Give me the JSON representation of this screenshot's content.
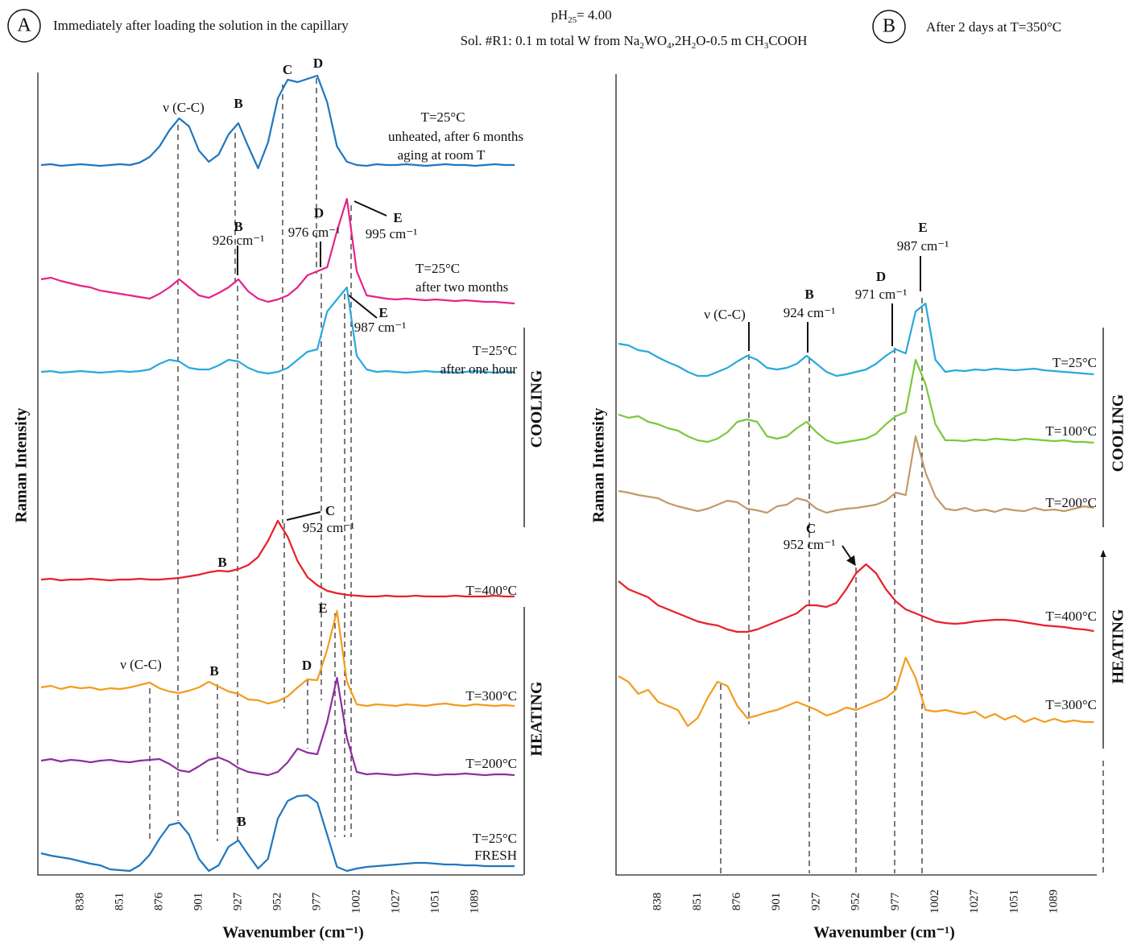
{
  "panel_labels": [
    "A",
    "B"
  ],
  "header": {
    "subtitle_a": "Immediately after loading the solution in the capillary",
    "subtitle_b": "After 2 days at T=350°C",
    "ph": [
      "pH",
      "25",
      "= 4.00"
    ],
    "solution": [
      "Sol. #R1: 0.1 m total W from ",
      "Na",
      "2",
      "WO",
      "4",
      ",2H",
      "2",
      "O-0.5 m CH",
      "3",
      "COOH"
    ]
  },
  "chart_data": [
    {
      "type": "line",
      "xlabel": "Wavenumber (cm⁻¹)",
      "ylabel": "Raman Intensity",
      "ylim": [
        0,
        100
      ],
      "categories": [
        null,
        null,
        null,
        null,
        "838",
        null,
        null,
        null,
        "851",
        null,
        null,
        null,
        "876",
        null,
        null,
        null,
        "901",
        null,
        null,
        null,
        "927",
        null,
        null,
        null,
        "952",
        null,
        null,
        null,
        "977",
        null,
        null,
        null,
        "1002",
        null,
        null,
        null,
        "1027",
        null,
        null,
        null,
        "1051",
        null,
        null,
        null,
        "1089",
        null,
        null,
        null,
        null
      ],
      "side_labels": [
        "COOLING",
        "HEATING"
      ],
      "annotations": [
        "ν (C-C)",
        "B",
        "C",
        "D",
        "B",
        "926 cm⁻¹",
        "D",
        "976 cm⁻¹",
        "E",
        "995 cm⁻¹",
        "E",
        "987 cm⁻¹",
        "C",
        "952 cm⁻¹",
        "B",
        "E",
        "ν (C-C)",
        "B",
        "D",
        "B"
      ],
      "series": [
        {
          "name": "T=25°C",
          "description": [
            "unheated, after 6 months",
            "aging at room T"
          ],
          "color": "#1f77c0",
          "values": [
            88.2,
            88.3,
            88.1,
            88.2,
            88.3,
            88.2,
            88.1,
            88.2,
            88.3,
            88.2,
            88.5,
            89.2,
            90.5,
            92.5,
            94,
            93,
            90,
            88.6,
            89.5,
            92,
            93.4,
            90.5,
            87.8,
            91,
            96.5,
            98.8,
            98.5,
            98.9,
            99.3,
            96,
            90.5,
            88.6,
            88.2,
            88.1,
            88.3,
            88.2,
            88.2,
            88.3,
            88.2,
            88.1,
            88.2,
            88.3,
            88.2,
            88.2,
            88.1,
            88.2,
            88.3,
            88.2,
            88.2
          ]
        },
        {
          "name": "T=25°C",
          "description": [
            "after two months"
          ],
          "color": "#e6228a",
          "values": [
            74,
            74.2,
            73.8,
            73.5,
            73.2,
            73,
            72.6,
            72.4,
            72.2,
            72,
            71.8,
            71.6,
            72.2,
            73,
            74,
            73,
            72,
            71.7,
            72.3,
            73,
            74,
            72.5,
            71.6,
            71.2,
            71.5,
            72,
            73,
            74.5,
            75,
            75.5,
            80,
            84,
            75,
            72,
            71.8,
            71.6,
            71.5,
            71.6,
            71.5,
            71.4,
            71.5,
            71.4,
            71.3,
            71.4,
            71.3,
            71.2,
            71.2,
            71.1,
            71
          ]
        },
        {
          "name": "T=25°C",
          "description": [
            "after one hour"
          ],
          "color": "#2aa8dc",
          "values": [
            62.5,
            62.6,
            62.4,
            62.5,
            62.6,
            62.5,
            62.4,
            62.5,
            62.6,
            62.5,
            62.6,
            62.8,
            63.5,
            64,
            63.8,
            63,
            62.8,
            62.8,
            63.3,
            64,
            63.8,
            63,
            62.5,
            62.3,
            62.5,
            63,
            64,
            65,
            65.3,
            70,
            71.5,
            73,
            64.5,
            62.8,
            62.5,
            62.6,
            62.5,
            62.4,
            62.5,
            62.6,
            62.5,
            62.5,
            62.4,
            62.5,
            62.6,
            62.5,
            62.4,
            62.5,
            62.5
          ]
        },
        {
          "name": "T=400°C",
          "color": "#e8202a",
          "values": [
            36.7,
            36.8,
            36.6,
            36.7,
            36.7,
            36.8,
            36.7,
            36.6,
            36.7,
            36.7,
            36.8,
            36.7,
            36.7,
            36.8,
            36.9,
            37.1,
            37.3,
            37.6,
            37.8,
            37.7,
            38,
            38.5,
            39.5,
            41.5,
            44,
            42,
            39,
            37,
            36,
            35.3,
            35,
            34.8,
            34.7,
            34.6,
            34.6,
            34.7,
            34.6,
            34.6,
            34.7,
            34.6,
            34.6,
            34.6,
            34.7,
            34.6,
            34.6,
            34.6,
            34.7,
            34.6,
            34.6
          ]
        },
        {
          "name": "T=300°C",
          "color": "#f39c1e",
          "values": [
            23.3,
            23.5,
            23.1,
            23.4,
            23.2,
            23.3,
            23,
            23.2,
            23.1,
            23.3,
            23.6,
            23.9,
            23.2,
            22.8,
            22.6,
            22.9,
            23.3,
            24,
            23.4,
            22.8,
            22.5,
            21.8,
            21.7,
            21.3,
            21.6,
            22.2,
            23.3,
            24.3,
            24.2,
            28,
            32.8,
            24,
            21.2,
            21,
            21.2,
            21.1,
            21,
            21.2,
            21.1,
            21,
            21.2,
            21.3,
            21.1,
            21,
            21.2,
            21.1,
            21,
            21.1,
            21
          ]
        },
        {
          "name": "T=200°C",
          "color": "#8e2fa0",
          "values": [
            14.2,
            14.4,
            14.1,
            14.3,
            14.2,
            14,
            14.2,
            14.3,
            14.1,
            14,
            14.2,
            14.3,
            14.4,
            13.8,
            13,
            12.8,
            13.5,
            14.3,
            14.6,
            14.1,
            13.3,
            12.8,
            12.6,
            12.4,
            12.8,
            14,
            15.7,
            15.2,
            15,
            19,
            24.5,
            17,
            12.8,
            12.5,
            12.6,
            12.5,
            12.4,
            12.5,
            12.6,
            12.5,
            12.4,
            12.5,
            12.5,
            12.6,
            12.5,
            12.4,
            12.5,
            12.5,
            12.4
          ]
        },
        {
          "name": "T=25°C",
          "description": [
            "FRESH"
          ],
          "color": "#1f77c0",
          "values": [
            2.7,
            2.4,
            2.2,
            2,
            1.7,
            1.4,
            1.2,
            0.7,
            0.6,
            0.5,
            1.2,
            2.5,
            4.5,
            6.2,
            6.5,
            5,
            2,
            0.5,
            1.2,
            3.5,
            4.3,
            2.5,
            0.8,
            2,
            7,
            9.2,
            9.8,
            9.9,
            9,
            5,
            1,
            0.5,
            0.8,
            1,
            1.1,
            1.2,
            1.3,
            1.4,
            1.5,
            1.5,
            1.4,
            1.3,
            1.3,
            1.2,
            1.2,
            1.1,
            1.1,
            1.1,
            1.1
          ]
        }
      ]
    },
    {
      "type": "line",
      "xlabel": "Wavenumber (cm⁻¹)",
      "ylabel": "Raman Intensity",
      "ylim": [
        0,
        100
      ],
      "categories": [
        null,
        null,
        null,
        null,
        "838",
        null,
        null,
        null,
        "851",
        null,
        null,
        null,
        "876",
        null,
        null,
        null,
        "901",
        null,
        null,
        null,
        "927",
        null,
        null,
        null,
        "952",
        null,
        null,
        null,
        "977",
        null,
        null,
        null,
        "1002",
        null,
        null,
        null,
        "1027",
        null,
        null,
        null,
        "1051",
        null,
        null,
        null,
        "1089",
        null,
        null,
        null,
        null
      ],
      "side_labels": [
        "COOLING",
        "HEATING"
      ],
      "annotations": [
        "ν (C-C)",
        "B",
        "924 cm⁻¹",
        "D",
        "971 cm⁻¹",
        "E",
        "987 cm⁻¹",
        "C",
        "952 cm⁻¹"
      ],
      "series": [
        {
          "name": "T=25°C",
          "color": "#2aa8dc",
          "values": [
            66,
            65.8,
            65.2,
            65,
            64.3,
            63.7,
            63.2,
            62.5,
            62,
            62,
            62.5,
            63,
            63.8,
            64.5,
            64,
            63,
            62.8,
            63,
            63.5,
            64.5,
            63.5,
            62.5,
            62,
            62.2,
            62.5,
            62.8,
            63.5,
            64.5,
            65.3,
            64.8,
            70,
            71,
            64,
            62.5,
            62.7,
            62.6,
            62.8,
            62.7,
            62.9,
            62.8,
            62.7,
            62.8,
            62.9,
            62.7,
            62.6,
            62.5,
            62.4,
            62.3,
            62.2
          ]
        },
        {
          "name": "T=100°C",
          "color": "#7cc83c",
          "values": [
            57.2,
            56.8,
            57,
            56.3,
            56,
            55.5,
            55.2,
            54.5,
            54,
            53.8,
            54.2,
            55,
            56.3,
            56.6,
            56.3,
            54.5,
            54.2,
            54.5,
            55.5,
            56.3,
            55,
            54,
            53.6,
            53.8,
            54,
            54.2,
            54.8,
            56,
            57,
            57.5,
            64,
            61,
            56,
            54,
            54,
            53.9,
            54.1,
            54,
            54.2,
            54.1,
            54,
            54.2,
            54.1,
            54,
            53.9,
            54,
            53.8,
            53.8,
            53.7
          ]
        },
        {
          "name": "T=200°C",
          "color": "#c19a6b",
          "values": [
            47.7,
            47.5,
            47.2,
            47,
            46.8,
            46.2,
            45.8,
            45.5,
            45.2,
            45.5,
            46,
            46.5,
            46.3,
            45.5,
            45.3,
            45,
            45.8,
            46,
            46.8,
            46.5,
            45.5,
            45,
            45.3,
            45.5,
            45.6,
            45.8,
            46,
            46.5,
            47.5,
            47.2,
            54.5,
            50,
            47,
            45.5,
            45.3,
            45.6,
            45.2,
            45.4,
            45.1,
            45.5,
            45.3,
            45.2,
            45.6,
            45.3,
            45.4,
            45.2,
            45.5,
            45.8,
            45.6
          ]
        },
        {
          "name": "T=400°C",
          "color": "#e8202a",
          "values": [
            36.5,
            35.5,
            35,
            34.5,
            33.5,
            33,
            32.5,
            32,
            31.5,
            31.2,
            31,
            30.5,
            30.2,
            30.2,
            30.5,
            31,
            31.5,
            32,
            32.5,
            33.5,
            33.5,
            33.3,
            33.8,
            35.5,
            37.5,
            38.6,
            37.5,
            35.5,
            34,
            33,
            32.5,
            32,
            31.5,
            31.3,
            31.2,
            31.3,
            31.5,
            31.6,
            31.7,
            31.7,
            31.6,
            31.4,
            31.2,
            31,
            30.9,
            30.8,
            30.6,
            30.5,
            30.3
          ]
        },
        {
          "name": "T=300°C",
          "color": "#f39c1e",
          "values": [
            24.7,
            24,
            22.5,
            23,
            21.5,
            21,
            20.5,
            18.5,
            19.5,
            22,
            24,
            23.5,
            21,
            19.5,
            19.8,
            20.2,
            20.5,
            21,
            21.5,
            21,
            20.5,
            19.8,
            20.2,
            20.8,
            20.5,
            21,
            21.5,
            22,
            23,
            27,
            24.5,
            20.5,
            20.3,
            20.5,
            20.2,
            20,
            20.3,
            19.5,
            20,
            19.3,
            19.8,
            19,
            19.5,
            19,
            19.4,
            19,
            19.2,
            19,
            19
          ]
        }
      ]
    }
  ]
}
